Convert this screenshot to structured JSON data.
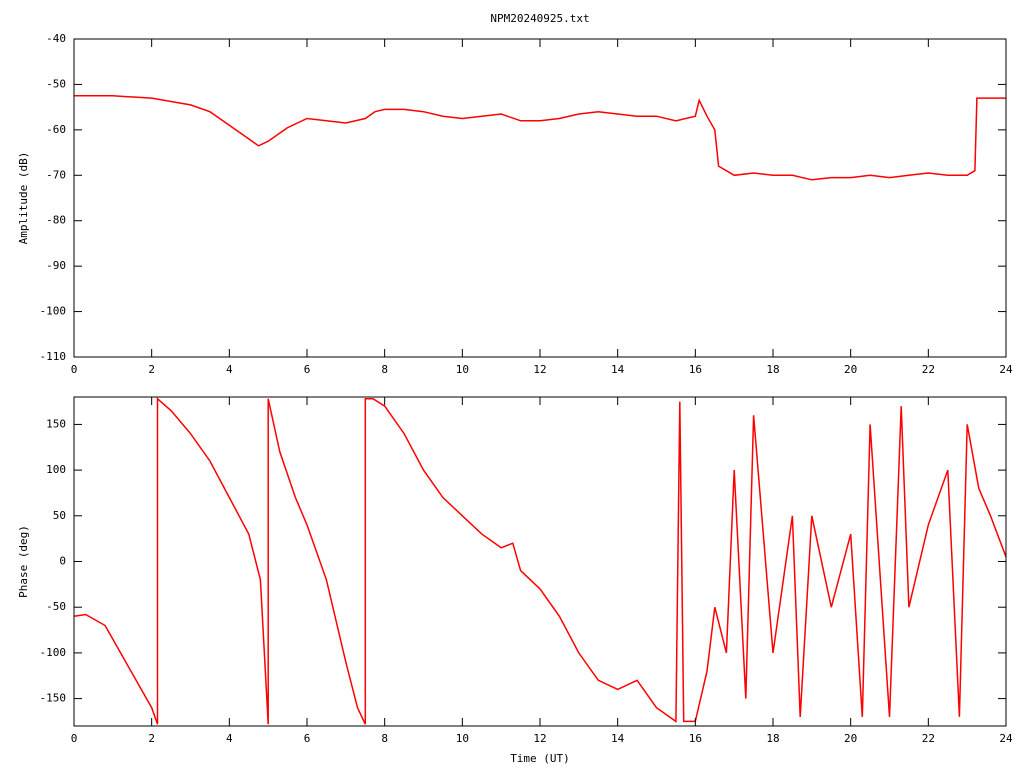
{
  "chart_data": [
    {
      "type": "line",
      "title": "NPM20240925.txt",
      "ylabel": "Amplitude (dB)",
      "color": "#ff0000",
      "x": [
        0,
        1,
        2,
        3,
        3.5,
        4,
        4.5,
        4.75,
        5,
        5.5,
        6,
        6.5,
        7,
        7.5,
        7.75,
        8,
        8.5,
        9,
        9.5,
        10,
        10.5,
        11,
        11.5,
        12,
        12.5,
        13,
        13.5,
        14,
        14.5,
        15,
        15.5,
        16,
        16.1,
        16.3,
        16.5,
        16.6,
        17,
        17.5,
        18,
        18.5,
        19,
        19.5,
        20,
        20.5,
        21,
        21.5,
        22,
        22.5,
        23,
        23.2,
        23.25,
        23.5,
        24
      ],
      "values": [
        -52.5,
        -52.5,
        -53,
        -54.5,
        -56,
        -59,
        -62,
        -63.5,
        -62.5,
        -59.5,
        -57.5,
        -58,
        -58.5,
        -57.5,
        -56,
        -55.5,
        -55.5,
        -56,
        -57,
        -57.5,
        -57,
        -56.5,
        -58,
        -58,
        -57.5,
        -56.5,
        -56,
        -56.5,
        -57,
        -57,
        -58,
        -57,
        -53.5,
        -57,
        -60,
        -68,
        -70,
        -69.5,
        -70,
        -70,
        -71,
        -70.5,
        -70.5,
        -70,
        -70.5,
        -70,
        -69.5,
        -70,
        -70,
        -69,
        -53,
        -53,
        -53
      ],
      "xlim": [
        0,
        24
      ],
      "xticks": [
        0,
        2,
        4,
        6,
        8,
        10,
        12,
        14,
        16,
        18,
        20,
        22,
        24
      ],
      "ylim": [
        -110,
        -40
      ],
      "yticks": [
        -110,
        -100,
        -90,
        -80,
        -70,
        -60,
        -50,
        -40
      ]
    },
    {
      "type": "line",
      "ylabel": "Phase (deg)",
      "xlabel": "Time (UT)",
      "color": "#ff0000",
      "x": [
        0,
        0.3,
        0.8,
        1.2,
        1.6,
        2.0,
        2.15,
        2.15,
        2.5,
        3,
        3.5,
        4,
        4.5,
        4.8,
        5.0,
        5.0,
        5.3,
        5.7,
        6,
        6.5,
        7,
        7.3,
        7.5,
        7.5,
        7.7,
        8,
        8.5,
        9,
        9.5,
        10,
        10.5,
        11,
        11.3,
        11.5,
        12,
        12.5,
        13,
        13.5,
        14,
        14.5,
        15,
        15.5,
        15.6,
        15.7,
        16,
        16.3,
        16.5,
        16.8,
        17,
        17.3,
        17.5,
        18,
        18.5,
        18.7,
        19,
        19.5,
        20,
        20.3,
        20.5,
        21,
        21.3,
        21.5,
        22,
        22.5,
        22.8,
        23,
        23.3,
        23.6,
        24
      ],
      "values": [
        -60,
        -58,
        -70,
        -100,
        -130,
        -160,
        -178,
        178,
        165,
        140,
        110,
        70,
        30,
        -20,
        -178,
        178,
        120,
        70,
        40,
        -20,
        -110,
        -160,
        -178,
        178,
        178,
        170,
        140,
        100,
        70,
        50,
        30,
        15,
        20,
        -10,
        -30,
        -60,
        -100,
        -130,
        -140,
        -130,
        -160,
        -175,
        175,
        -175,
        -175,
        -120,
        -50,
        -100,
        100,
        -150,
        160,
        -100,
        50,
        -170,
        50,
        -50,
        30,
        -170,
        150,
        -170,
        170,
        -50,
        40,
        100,
        -170,
        150,
        80,
        50,
        5
      ],
      "xlim": [
        0,
        24
      ],
      "xticks": [
        0,
        2,
        4,
        6,
        8,
        10,
        12,
        14,
        16,
        18,
        20,
        22,
        24
      ],
      "ylim": [
        -180,
        180
      ],
      "yticks": [
        -150,
        -100,
        -50,
        0,
        50,
        100,
        150
      ]
    }
  ]
}
